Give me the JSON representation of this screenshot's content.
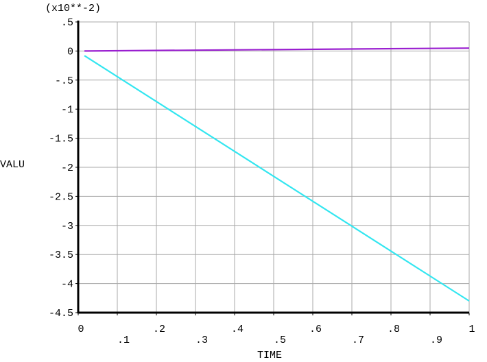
{
  "chart_data": {
    "type": "line",
    "title": "",
    "scale_note": "(x10**-2)",
    "xlabel": "TIME",
    "ylabel": "VALU",
    "xlim": [
      0,
      1
    ],
    "ylim": [
      -4.5,
      0.5
    ],
    "x_ticks_top_row": [
      "0",
      ".2",
      ".4",
      ".6",
      ".8",
      "1"
    ],
    "x_ticks_bottom_row": [
      ".1",
      ".3",
      ".5",
      ".7",
      ".9"
    ],
    "y_ticks": [
      ".5",
      "0",
      "-.5",
      "-1",
      "-1.5",
      "-2",
      "-2.5",
      "-3",
      "-3.5",
      "-4",
      "-4.5"
    ],
    "grid": true,
    "series": [
      {
        "color": "#9a1fd0",
        "x": [
          0.016,
          1.0
        ],
        "y": [
          0.0,
          0.05
        ]
      },
      {
        "color": "#33e6f0",
        "x": [
          0.016,
          1.0
        ],
        "y": [
          -0.08,
          -4.3
        ]
      }
    ]
  }
}
